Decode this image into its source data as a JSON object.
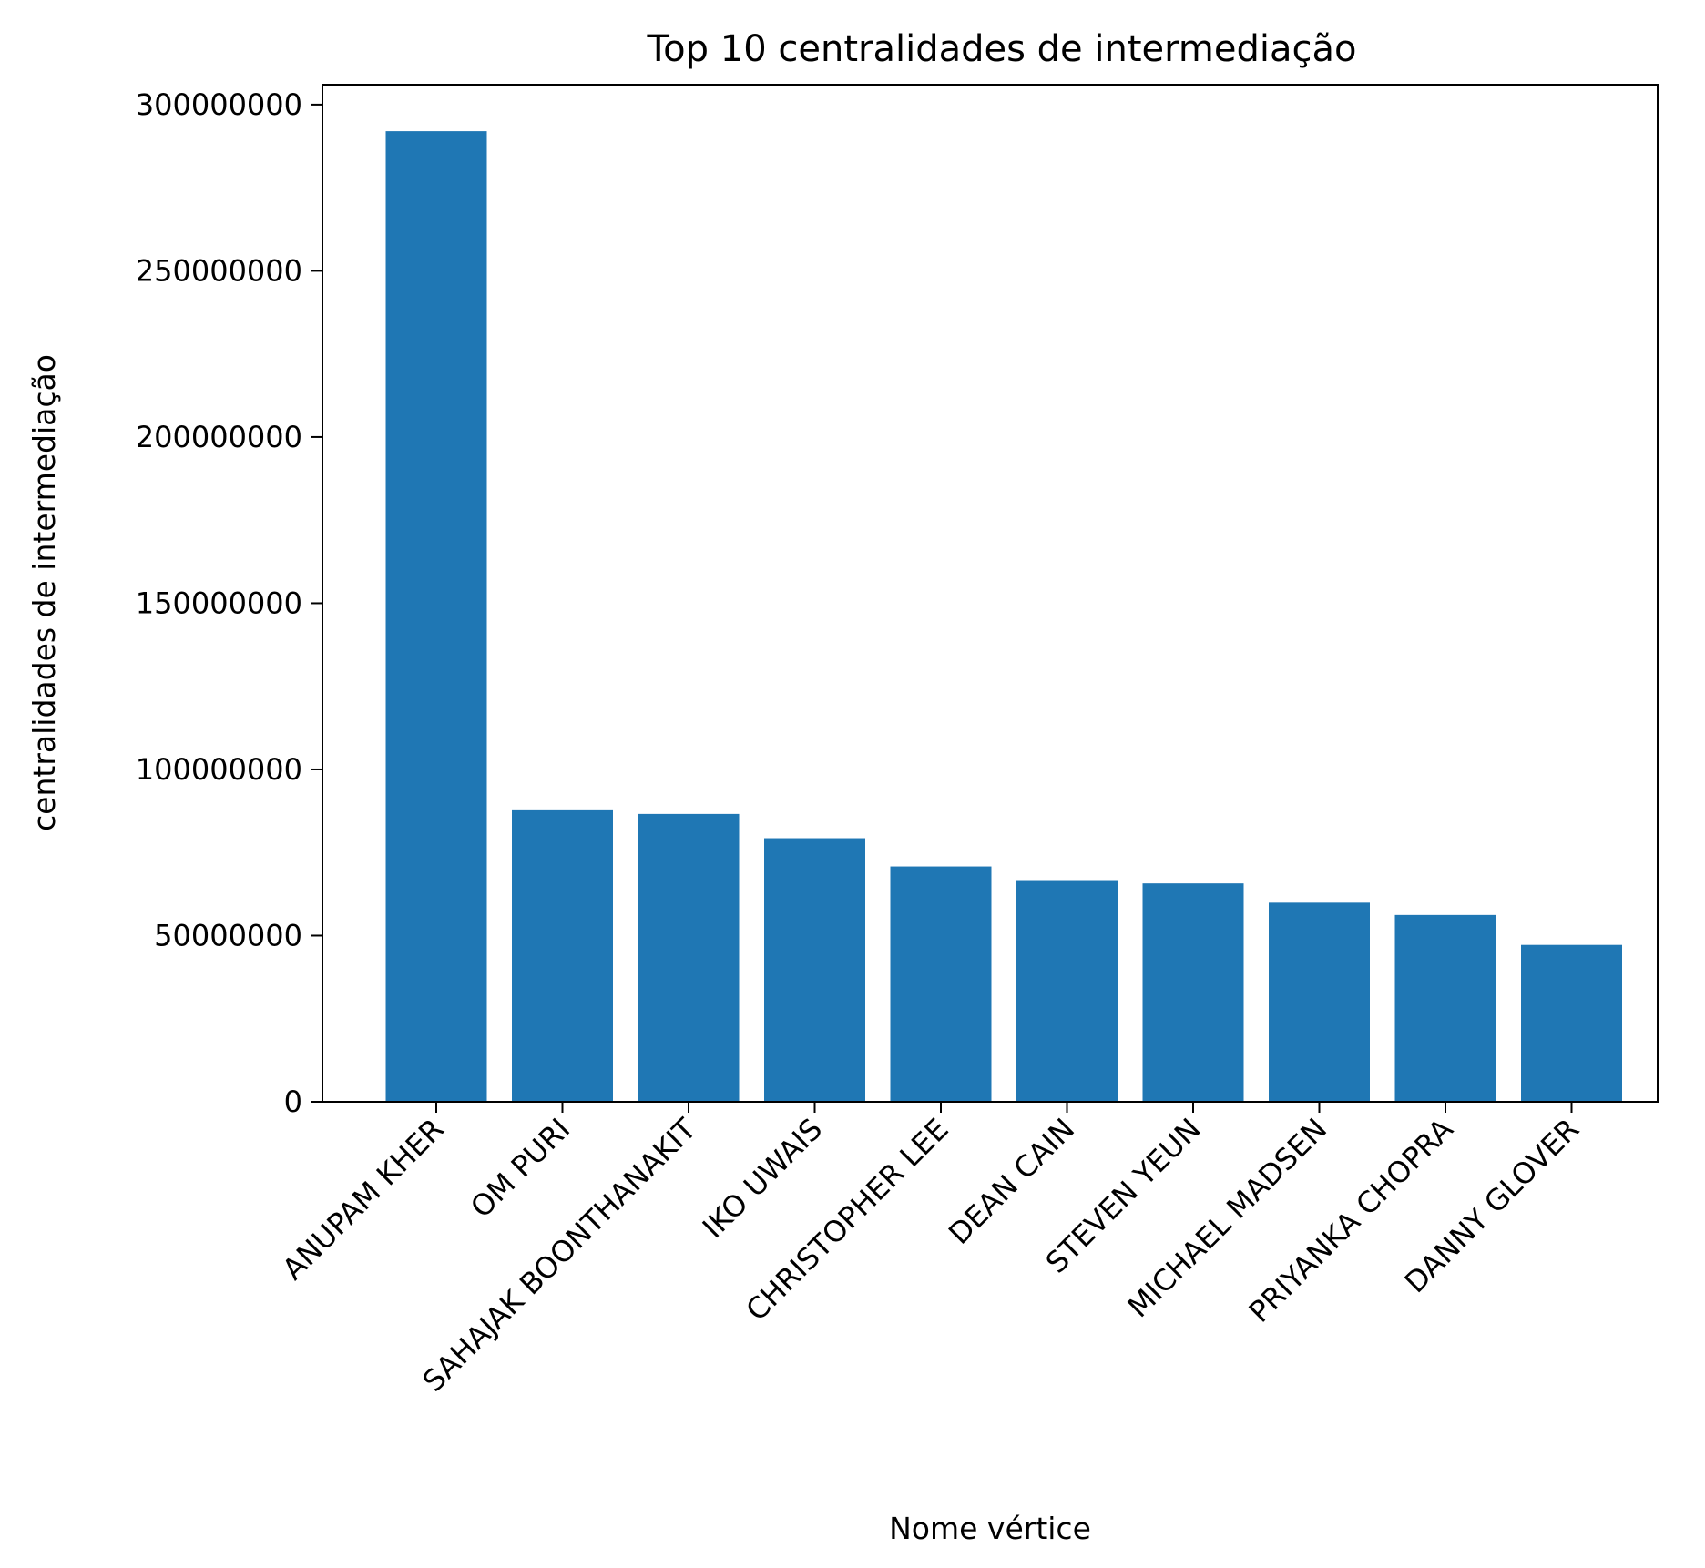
{
  "chart_data": {
    "type": "bar",
    "title": "Top 10 centralidades de intermediação",
    "xlabel": "Nome vértice",
    "ylabel": "centralidades de intermediação",
    "categories": [
      "ANUPAM KHER",
      "OM PURI",
      "SAHAJAK BOONTHANAKIT",
      "IKO UWAIS",
      "CHRISTOPHER LEE",
      "DEAN CAIN",
      "STEVEN YEUN",
      "MICHAEL MADSEN",
      "PRIYANKA CHOPRA",
      "DANNY GLOVER"
    ],
    "values": [
      292000000,
      87700000,
      86600000,
      79300000,
      70800000,
      66700000,
      65700000,
      59900000,
      56200000,
      47200000
    ],
    "ylim": [
      0,
      306000000
    ],
    "yticks": [
      0,
      50000000,
      100000000,
      150000000,
      200000000,
      250000000,
      300000000
    ],
    "ytick_labels": [
      "0",
      "50000000",
      "100000000",
      "150000000",
      "200000000",
      "250000000",
      "300000000"
    ],
    "grid": false,
    "legend": "none",
    "bar_color": "#1f77b4"
  }
}
